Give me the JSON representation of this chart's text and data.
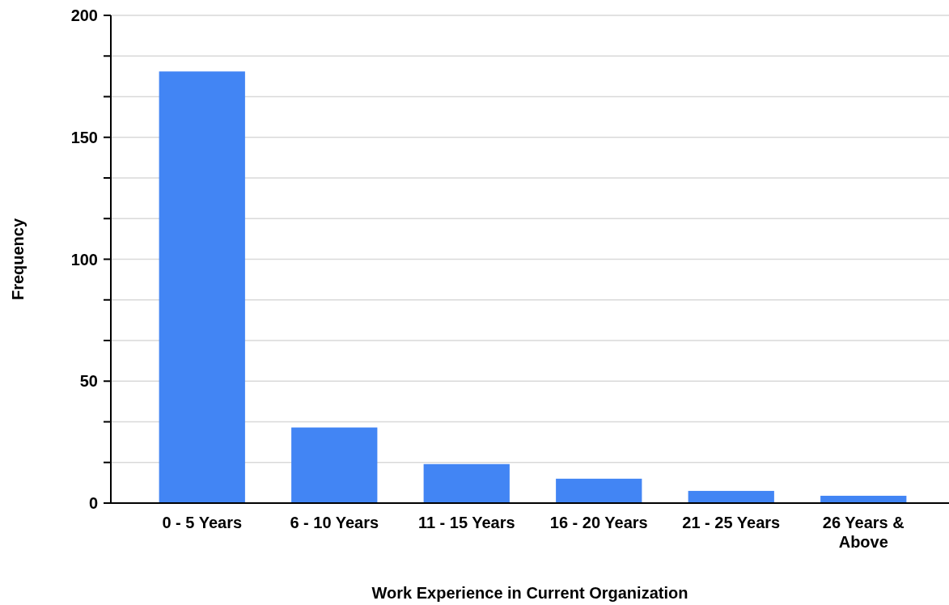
{
  "chart_data": {
    "type": "bar",
    "xlabel": "Work Experience in Current Organization",
    "ylabel": "Frequency",
    "categories": [
      "0 - 5 Years",
      "6 - 10 Years",
      "11 - 15 Years",
      "16 - 20 Years",
      "21 - 25 Years",
      "26 Years & Above"
    ],
    "values": [
      177,
      31,
      16,
      10,
      5,
      3
    ],
    "color": "#4285f4",
    "ylim": [
      0,
      200
    ],
    "yticks": [
      0,
      {
        "value": 16.67,
        "label": null
      },
      {
        "value": 33.33,
        "label": null
      },
      50,
      {
        "value": 66.67,
        "label": null
      },
      {
        "value": 83.33,
        "label": null
      },
      100,
      {
        "value": 116.67,
        "label": null
      },
      {
        "value": 133.33,
        "label": null
      },
      150,
      {
        "value": 166.67,
        "label": null
      },
      {
        "value": 183.33,
        "label": null
      },
      200
    ],
    "grid": "y"
  }
}
